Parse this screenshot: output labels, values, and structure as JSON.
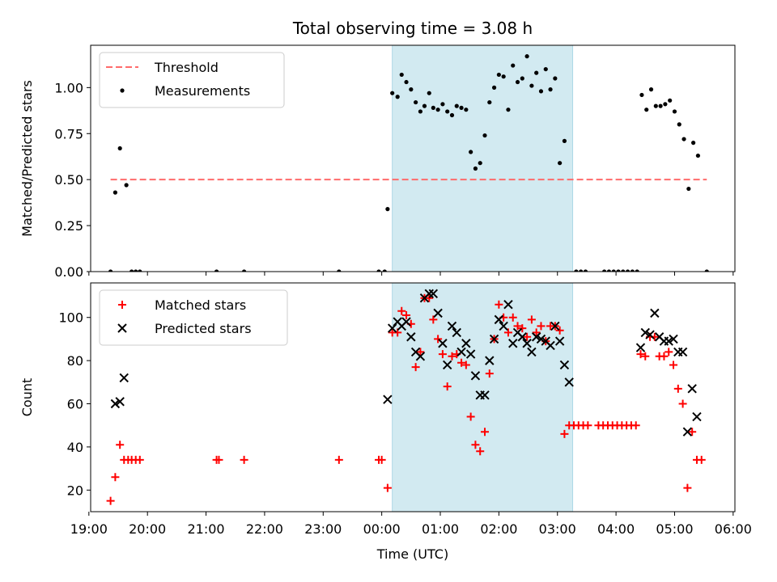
{
  "title": "Total observing time = 3.08 h",
  "colors": {
    "threshold": "#ff6b6b",
    "measurement": "#000000",
    "matched": "#ff0000",
    "predicted": "#000000",
    "span_fill": "#add8e6"
  },
  "chart_data": [
    {
      "type": "scatter",
      "panel": "top",
      "xlabel": "",
      "ylabel": "Matched/Predicted stars",
      "ylim": [
        0,
        1.23
      ],
      "yticks": [
        "0.00",
        "0.25",
        "0.50",
        "0.75",
        "1.00"
      ],
      "ytick_values": [
        0,
        0.25,
        0.5,
        0.75,
        1.0
      ],
      "xlim": [
        -4.97,
        6.03
      ],
      "x_unit": "hours relative to 00:00 UTC",
      "shaded_span": [
        0.18,
        3.26
      ],
      "legend": {
        "position": "top-left",
        "entries": [
          "Threshold",
          "Measurements"
        ]
      },
      "threshold": {
        "name": "Threshold",
        "value": 0.5,
        "x_range": [
          -4.63,
          5.55
        ],
        "style": "dashed"
      },
      "series": [
        {
          "name": "Measurements",
          "marker": "dot",
          "points": [
            [
              -4.63,
              0.0
            ],
            [
              -4.55,
              0.43
            ],
            [
              -4.47,
              0.67
            ],
            [
              -4.36,
              0.47
            ],
            [
              -4.27,
              0.0
            ],
            [
              -4.2,
              0.0
            ],
            [
              -4.13,
              0.0
            ],
            [
              -2.82,
              0.0
            ],
            [
              -2.35,
              0.0
            ],
            [
              -0.73,
              0.0
            ],
            [
              -0.05,
              0.0
            ],
            [
              0.05,
              0.0
            ],
            [
              0.1,
              0.34
            ],
            [
              0.18,
              0.97
            ],
            [
              0.27,
              0.95
            ],
            [
              0.34,
              1.07
            ],
            [
              0.42,
              1.03
            ],
            [
              0.5,
              0.99
            ],
            [
              0.58,
              0.92
            ],
            [
              0.66,
              0.87
            ],
            [
              0.73,
              0.9
            ],
            [
              0.81,
              0.97
            ],
            [
              0.88,
              0.89
            ],
            [
              0.96,
              0.88
            ],
            [
              1.04,
              0.91
            ],
            [
              1.12,
              0.87
            ],
            [
              1.2,
              0.85
            ],
            [
              1.28,
              0.9
            ],
            [
              1.36,
              0.89
            ],
            [
              1.44,
              0.88
            ],
            [
              1.52,
              0.65
            ],
            [
              1.6,
              0.56
            ],
            [
              1.68,
              0.59
            ],
            [
              1.76,
              0.74
            ],
            [
              1.84,
              0.92
            ],
            [
              1.92,
              1.0
            ],
            [
              2.0,
              1.07
            ],
            [
              2.08,
              1.06
            ],
            [
              2.16,
              0.88
            ],
            [
              2.24,
              1.12
            ],
            [
              2.32,
              1.03
            ],
            [
              2.4,
              1.05
            ],
            [
              2.48,
              1.17
            ],
            [
              2.56,
              1.01
            ],
            [
              2.64,
              1.08
            ],
            [
              2.72,
              0.98
            ],
            [
              2.8,
              1.1
            ],
            [
              2.88,
              0.99
            ],
            [
              2.96,
              1.05
            ],
            [
              3.04,
              0.59
            ],
            [
              3.12,
              0.71
            ],
            [
              3.32,
              0.0
            ],
            [
              3.4,
              0.0
            ],
            [
              3.48,
              0.0
            ],
            [
              3.8,
              0.0
            ],
            [
              3.88,
              0.0
            ],
            [
              3.96,
              0.0
            ],
            [
              4.04,
              0.0
            ],
            [
              4.12,
              0.0
            ],
            [
              4.2,
              0.0
            ],
            [
              4.28,
              0.0
            ],
            [
              4.36,
              0.0
            ],
            [
              4.44,
              0.96
            ],
            [
              4.52,
              0.88
            ],
            [
              4.6,
              0.99
            ],
            [
              4.68,
              0.9
            ],
            [
              4.76,
              0.9
            ],
            [
              4.84,
              0.91
            ],
            [
              4.92,
              0.93
            ],
            [
              5.0,
              0.87
            ],
            [
              5.08,
              0.8
            ],
            [
              5.16,
              0.72
            ],
            [
              5.24,
              0.45
            ],
            [
              5.32,
              0.7
            ],
            [
              5.4,
              0.63
            ],
            [
              5.55,
              0.0
            ]
          ]
        }
      ]
    },
    {
      "type": "scatter",
      "panel": "bottom",
      "xlabel": "Time (UTC)",
      "ylabel": "Count",
      "ylim": [
        10,
        116
      ],
      "yticks": [
        "20",
        "40",
        "60",
        "80",
        "100"
      ],
      "ytick_values": [
        20,
        40,
        60,
        80,
        100
      ],
      "xlim": [
        -4.97,
        6.03
      ],
      "x_unit": "hours relative to 00:00 UTC",
      "xticks": [
        "19:00",
        "20:00",
        "21:00",
        "22:00",
        "23:00",
        "00:00",
        "01:00",
        "02:00",
        "03:00",
        "04:00",
        "05:00",
        "06:00"
      ],
      "xtick_values": [
        -5,
        -4,
        -3,
        -2,
        -1,
        0,
        1,
        2,
        3,
        4,
        5,
        6
      ],
      "shaded_span": [
        0.18,
        3.26
      ],
      "legend": {
        "position": "top-left",
        "entries": [
          "Matched stars",
          "Predicted stars"
        ]
      },
      "series": [
        {
          "name": "Matched stars",
          "marker": "plus",
          "points": [
            [
              -4.63,
              15
            ],
            [
              -4.55,
              26
            ],
            [
              -4.47,
              41
            ],
            [
              -4.4,
              34
            ],
            [
              -4.33,
              34
            ],
            [
              -4.27,
              34
            ],
            [
              -4.2,
              34
            ],
            [
              -4.13,
              34
            ],
            [
              -2.82,
              34
            ],
            [
              -2.78,
              34
            ],
            [
              -2.35,
              34
            ],
            [
              -0.73,
              34
            ],
            [
              -0.05,
              34
            ],
            [
              0.0,
              34
            ],
            [
              0.1,
              21
            ],
            [
              0.18,
              93
            ],
            [
              0.27,
              93
            ],
            [
              0.34,
              103
            ],
            [
              0.42,
              101
            ],
            [
              0.5,
              97
            ],
            [
              0.58,
              77
            ],
            [
              0.66,
              84
            ],
            [
              0.73,
              109
            ],
            [
              0.81,
              109
            ],
            [
              0.88,
              99
            ],
            [
              0.96,
              90
            ],
            [
              1.04,
              83
            ],
            [
              1.12,
              68
            ],
            [
              1.2,
              82
            ],
            [
              1.28,
              83
            ],
            [
              1.36,
              79
            ],
            [
              1.44,
              78
            ],
            [
              1.52,
              54
            ],
            [
              1.6,
              41
            ],
            [
              1.68,
              38
            ],
            [
              1.76,
              47
            ],
            [
              1.84,
              74
            ],
            [
              1.92,
              90
            ],
            [
              2.0,
              106
            ],
            [
              2.08,
              100
            ],
            [
              2.16,
              93
            ],
            [
              2.24,
              100
            ],
            [
              2.32,
              96
            ],
            [
              2.4,
              95
            ],
            [
              2.48,
              91
            ],
            [
              2.56,
              99
            ],
            [
              2.64,
              93
            ],
            [
              2.72,
              96
            ],
            [
              2.8,
              89
            ],
            [
              2.88,
              96
            ],
            [
              2.96,
              96
            ],
            [
              3.04,
              94
            ],
            [
              3.12,
              46
            ],
            [
              3.2,
              50
            ],
            [
              3.28,
              50
            ],
            [
              3.36,
              50
            ],
            [
              3.44,
              50
            ],
            [
              3.52,
              50
            ],
            [
              3.7,
              50
            ],
            [
              3.78,
              50
            ],
            [
              3.86,
              50
            ],
            [
              3.94,
              50
            ],
            [
              4.02,
              50
            ],
            [
              4.1,
              50
            ],
            [
              4.18,
              50
            ],
            [
              4.26,
              50
            ],
            [
              4.34,
              50
            ],
            [
              4.42,
              83
            ],
            [
              4.5,
              82
            ],
            [
              4.58,
              91
            ],
            [
              4.66,
              91
            ],
            [
              4.74,
              82
            ],
            [
              4.82,
              82
            ],
            [
              4.9,
              84
            ],
            [
              4.98,
              78
            ],
            [
              5.06,
              67
            ],
            [
              5.14,
              60
            ],
            [
              5.22,
              21
            ],
            [
              5.3,
              47
            ],
            [
              5.38,
              34
            ],
            [
              5.46,
              34
            ]
          ]
        },
        {
          "name": "Predicted stars",
          "marker": "x",
          "points": [
            [
              -4.55,
              60
            ],
            [
              -4.47,
              61
            ],
            [
              -4.4,
              72
            ],
            [
              0.1,
              62
            ],
            [
              0.18,
              95
            ],
            [
              0.27,
              98
            ],
            [
              0.34,
              96
            ],
            [
              0.42,
              98
            ],
            [
              0.5,
              91
            ],
            [
              0.58,
              84
            ],
            [
              0.66,
              82
            ],
            [
              0.73,
              109
            ],
            [
              0.81,
              111
            ],
            [
              0.88,
              111
            ],
            [
              0.96,
              102
            ],
            [
              1.04,
              88
            ],
            [
              1.12,
              78
            ],
            [
              1.2,
              96
            ],
            [
              1.28,
              93
            ],
            [
              1.36,
              84
            ],
            [
              1.44,
              88
            ],
            [
              1.52,
              83
            ],
            [
              1.6,
              73
            ],
            [
              1.68,
              64
            ],
            [
              1.76,
              64
            ],
            [
              1.84,
              80
            ],
            [
              1.92,
              90
            ],
            [
              2.0,
              99
            ],
            [
              2.08,
              96
            ],
            [
              2.16,
              106
            ],
            [
              2.24,
              88
            ],
            [
              2.32,
              93
            ],
            [
              2.4,
              91
            ],
            [
              2.48,
              88
            ],
            [
              2.56,
              84
            ],
            [
              2.64,
              91
            ],
            [
              2.72,
              90
            ],
            [
              2.8,
              89
            ],
            [
              2.88,
              87
            ],
            [
              2.96,
              96
            ],
            [
              3.04,
              89
            ],
            [
              3.12,
              78
            ],
            [
              3.2,
              70
            ],
            [
              4.42,
              86
            ],
            [
              4.5,
              93
            ],
            [
              4.58,
              92
            ],
            [
              4.66,
              102
            ],
            [
              4.74,
              91
            ],
            [
              4.82,
              89
            ],
            [
              4.9,
              89
            ],
            [
              4.98,
              90
            ],
            [
              5.06,
              84
            ],
            [
              5.14,
              84
            ],
            [
              5.22,
              47
            ],
            [
              5.3,
              67
            ],
            [
              5.38,
              54
            ]
          ]
        }
      ]
    }
  ]
}
